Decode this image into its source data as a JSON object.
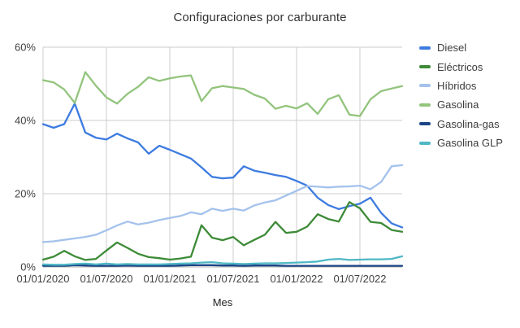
{
  "title": "Configuraciones por carburante",
  "x_axis": {
    "title": "Mes",
    "tick_labels": [
      "01/01/2020",
      "01/07/2020",
      "01/01/2021",
      "01/07/2021",
      "01/01/2022",
      "01/07/2022"
    ]
  },
  "y_axis": {
    "tick_labels": [
      "0%",
      "20%",
      "40%",
      "60%"
    ],
    "unit": "%"
  },
  "colors": {
    "grid": "#cccccc",
    "axis_text": "#424242",
    "title_text": "#333333"
  },
  "legend": {
    "position": "right",
    "items": [
      {
        "label": "Diesel",
        "color": "#3d7be0"
      },
      {
        "label": "Eléctricos",
        "color": "#3d8b37"
      },
      {
        "label": "Híbridos",
        "color": "#a4c2ec"
      },
      {
        "label": "Gasolina",
        "color": "#93c47d"
      },
      {
        "label": "Gasolina-gas",
        "color": "#1c4587"
      },
      {
        "label": "Gasolina GLP",
        "color": "#4fb8c5"
      }
    ]
  },
  "chart_data": {
    "type": "line",
    "title": "Configuraciones por carburante",
    "xlabel": "Mes",
    "ylabel": "",
    "y_unit": "%",
    "ylim": [
      0,
      60
    ],
    "grid": true,
    "legend_position": "right",
    "x_tick_indices": [
      0,
      6,
      12,
      18,
      24,
      30
    ],
    "x": [
      "01/01/2020",
      "01/02/2020",
      "01/03/2020",
      "01/04/2020",
      "01/05/2020",
      "01/06/2020",
      "01/07/2020",
      "01/08/2020",
      "01/09/2020",
      "01/10/2020",
      "01/11/2020",
      "01/12/2020",
      "01/01/2021",
      "01/02/2021",
      "01/03/2021",
      "01/04/2021",
      "01/05/2021",
      "01/06/2021",
      "01/07/2021",
      "01/08/2021",
      "01/09/2021",
      "01/10/2021",
      "01/11/2021",
      "01/12/2021",
      "01/01/2022",
      "01/02/2022",
      "01/03/2022",
      "01/04/2022",
      "01/05/2022",
      "01/06/2022",
      "01/07/2022",
      "01/08/2022",
      "01/09/2022",
      "01/10/2022",
      "01/11/2022"
    ],
    "series": [
      {
        "name": "Diesel",
        "color": "#3d7be0",
        "values": [
          39.0,
          38.0,
          39.0,
          44.6,
          36.7,
          35.3,
          34.8,
          36.4,
          35.1,
          34.0,
          30.9,
          33.1,
          32.0,
          30.8,
          29.6,
          27.2,
          24.6,
          24.2,
          24.4,
          27.5,
          26.3,
          25.7,
          25.1,
          24.6,
          23.5,
          22.2,
          18.9,
          16.9,
          15.8,
          16.6,
          17.3,
          18.9,
          14.8,
          11.9,
          10.8
        ]
      },
      {
        "name": "Eléctricos",
        "color": "#3d8b37",
        "values": [
          2.0,
          2.8,
          4.4,
          2.9,
          1.9,
          2.2,
          4.5,
          6.7,
          5.2,
          3.6,
          2.7,
          2.4,
          2.0,
          2.3,
          2.8,
          11.4,
          8.0,
          7.3,
          8.2,
          5.9,
          7.4,
          8.8,
          12.3,
          9.3,
          9.6,
          11.0,
          14.4,
          13.1,
          12.4,
          17.7,
          16.0,
          12.3,
          12.0,
          10.1,
          9.6
        ]
      },
      {
        "name": "Híbridos",
        "color": "#a4c2ec",
        "values": [
          6.8,
          7.0,
          7.4,
          7.8,
          8.2,
          8.8,
          10.0,
          11.3,
          12.4,
          11.6,
          12.1,
          12.8,
          13.4,
          13.9,
          14.9,
          14.4,
          15.9,
          15.3,
          15.9,
          15.4,
          16.8,
          17.6,
          18.2,
          19.5,
          20.8,
          22.1,
          21.9,
          21.7,
          21.9,
          22.0,
          22.2,
          21.2,
          23.2,
          27.5,
          27.8
        ]
      },
      {
        "name": "Gasolina",
        "color": "#93c47d",
        "values": [
          51.0,
          50.4,
          48.5,
          44.8,
          53.2,
          49.5,
          46.3,
          44.6,
          47.3,
          49.2,
          51.8,
          50.8,
          51.5,
          52.0,
          52.3,
          45.3,
          48.8,
          49.4,
          49.0,
          48.6,
          47.0,
          46.0,
          43.2,
          44.0,
          43.3,
          44.7,
          41.8,
          45.8,
          46.9,
          41.6,
          41.2,
          45.8,
          48.0,
          48.7,
          49.4
        ]
      },
      {
        "name": "Gasolina-gas",
        "color": "#1c4587",
        "values": [
          0.3,
          0.3,
          0.3,
          0.5,
          0.4,
          0.3,
          0.3,
          0.3,
          0.4,
          0.3,
          0.3,
          0.3,
          0.3,
          0.4,
          0.5,
          0.5,
          0.5,
          0.4,
          0.4,
          0.3,
          0.4,
          0.4,
          0.4,
          0.3,
          0.3,
          0.3,
          0.3,
          0.3,
          0.3,
          0.3,
          0.3,
          0.3,
          0.3,
          0.3,
          0.3
        ]
      },
      {
        "name": "Gasolina GLP",
        "color": "#4fb8c5",
        "values": [
          0.7,
          0.6,
          0.6,
          0.8,
          0.9,
          0.7,
          0.9,
          0.7,
          0.8,
          0.7,
          0.7,
          0.7,
          0.8,
          0.9,
          1.0,
          1.2,
          1.3,
          1.0,
          0.9,
          0.8,
          0.9,
          1.0,
          1.0,
          1.1,
          1.2,
          1.3,
          1.5,
          2.0,
          2.2,
          1.9,
          2.0,
          2.1,
          2.1,
          2.2,
          2.9
        ]
      }
    ]
  }
}
